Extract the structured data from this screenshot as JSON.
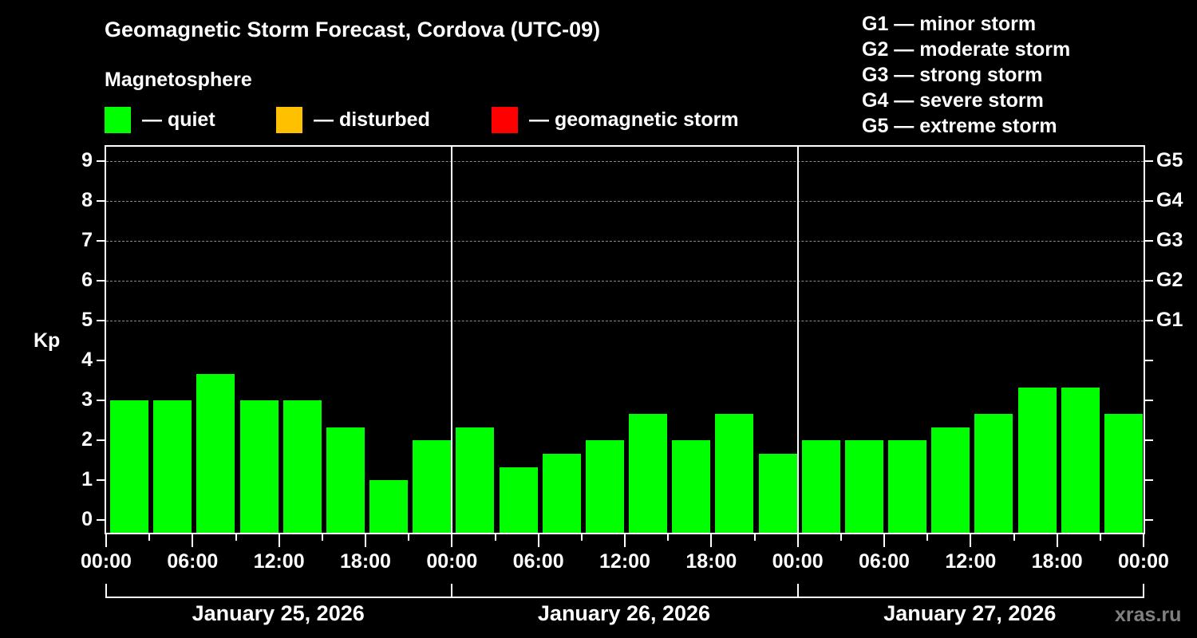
{
  "header": {
    "title": "Geomagnetic Storm Forecast, Cordova (UTC-09)",
    "subtitle": "Magnetosphere"
  },
  "legend": [
    {
      "label": "— quiet",
      "color": "#00ff00"
    },
    {
      "label": "— disturbed",
      "color": "#ffc000"
    },
    {
      "label": "— geomagnetic storm",
      "color": "#ff0000"
    }
  ],
  "storm_scale": [
    "G1 — minor storm",
    "G2 — moderate storm",
    "G3 — strong storm",
    "G4 — severe storm",
    "G5 — extreme storm"
  ],
  "axes": {
    "ylabel": "Kp",
    "yticks": [
      "0",
      "1",
      "2",
      "3",
      "4",
      "5",
      "6",
      "7",
      "8",
      "9"
    ],
    "right_ticks": [
      {
        "kp": 5,
        "label": "G1"
      },
      {
        "kp": 6,
        "label": "G2"
      },
      {
        "kp": 7,
        "label": "G3"
      },
      {
        "kp": 8,
        "label": "G4"
      },
      {
        "kp": 9,
        "label": "G5"
      }
    ],
    "xticks": [
      "00:00",
      "06:00",
      "12:00",
      "18:00",
      "00:00",
      "06:00",
      "12:00",
      "18:00",
      "00:00",
      "06:00",
      "12:00",
      "18:00",
      "00:00"
    ],
    "days": [
      "January 25, 2026",
      "January 26, 2026",
      "January 27, 2026"
    ]
  },
  "watermark": "xras.ru",
  "chart_data": {
    "type": "bar",
    "title": "Geomagnetic Storm Forecast, Cordova (UTC-09)",
    "subtitle": "Magnetosphere",
    "xlabel": "",
    "ylabel": "Kp",
    "ylim": [
      0,
      9
    ],
    "grid": "dashed horizontal at Kp 5-9",
    "legend_position": "top",
    "interval_hours": 3,
    "categories": [
      "Jan 25 00:00",
      "Jan 25 03:00",
      "Jan 25 06:00",
      "Jan 25 09:00",
      "Jan 25 12:00",
      "Jan 25 15:00",
      "Jan 25 18:00",
      "Jan 25 21:00",
      "Jan 26 00:00",
      "Jan 26 03:00",
      "Jan 26 06:00",
      "Jan 26 09:00",
      "Jan 26 12:00",
      "Jan 26 15:00",
      "Jan 26 18:00",
      "Jan 26 21:00",
      "Jan 27 00:00",
      "Jan 27 03:00",
      "Jan 27 06:00",
      "Jan 27 09:00",
      "Jan 27 12:00",
      "Jan 27 15:00",
      "Jan 27 18:00",
      "Jan 27 21:00"
    ],
    "series": [
      {
        "name": "Kp",
        "values": [
          3.0,
          3.0,
          3.67,
          3.0,
          3.0,
          2.33,
          1.0,
          2.0,
          2.33,
          1.33,
          1.67,
          2.0,
          2.67,
          2.0,
          2.67,
          1.67,
          2.0,
          2.0,
          2.0,
          2.33,
          2.67,
          3.33,
          3.33,
          2.67
        ],
        "status": [
          "quiet",
          "quiet",
          "quiet",
          "quiet",
          "quiet",
          "quiet",
          "quiet",
          "quiet",
          "quiet",
          "quiet",
          "quiet",
          "quiet",
          "quiet",
          "quiet",
          "quiet",
          "quiet",
          "quiet",
          "quiet",
          "quiet",
          "quiet",
          "quiet",
          "quiet",
          "quiet",
          "quiet"
        ]
      }
    ],
    "status_colors": {
      "quiet": "#00ff00",
      "disturbed": "#ffc000",
      "storm": "#ff0000"
    }
  }
}
